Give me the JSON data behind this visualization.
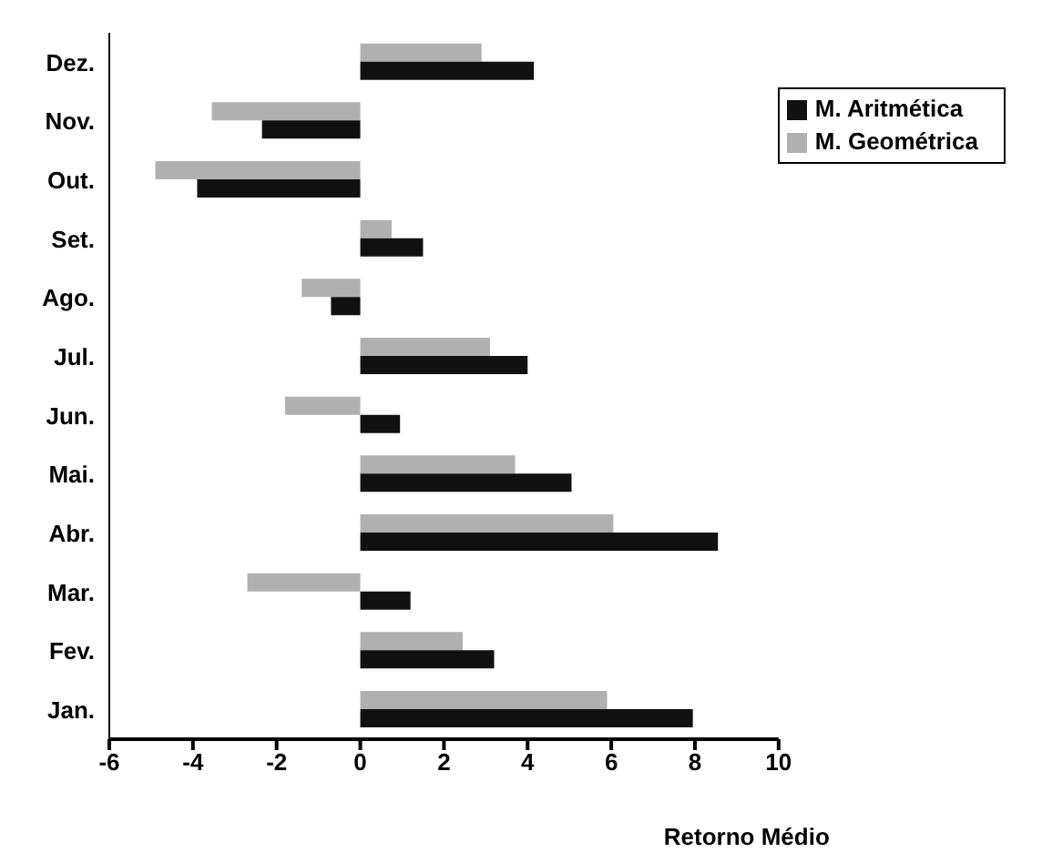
{
  "chart_data": {
    "type": "bar",
    "orientation": "horizontal",
    "xlabel": "Retorno Médio",
    "categories": [
      "Dez.",
      "Nov.",
      "Out.",
      "Set.",
      "Ago.",
      "Jul.",
      "Jun.",
      "Mai.",
      "Abr.",
      "Mar.",
      "Fev.",
      "Jan."
    ],
    "series": [
      {
        "name": "M. Geométrica",
        "color": "#b0b0b0",
        "values": [
          2.9,
          -3.55,
          -4.9,
          0.75,
          -1.4,
          3.1,
          -1.8,
          3.7,
          6.05,
          -2.7,
          2.45,
          5.9
        ]
      },
      {
        "name": "M. Aritmética",
        "color": "#111111",
        "values": [
          4.15,
          -2.35,
          -3.9,
          1.5,
          -0.7,
          4.0,
          0.95,
          5.05,
          8.55,
          1.2,
          3.2,
          7.95
        ]
      }
    ],
    "xlim": [
      -6,
      10
    ],
    "xticks": [
      -6,
      -4,
      -2,
      0,
      2,
      4,
      6,
      8,
      10
    ],
    "grid": false,
    "legend": "top right"
  }
}
